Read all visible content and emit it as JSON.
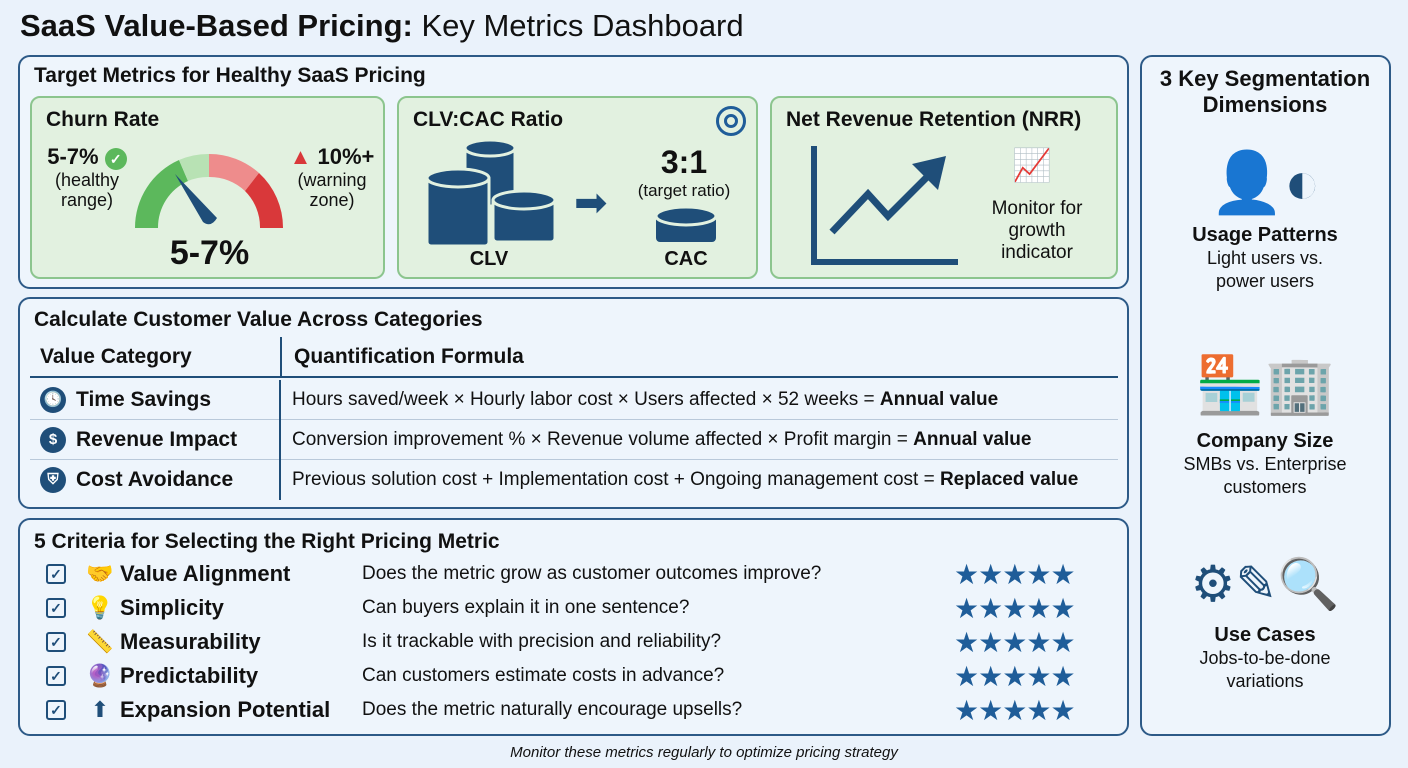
{
  "title": {
    "bold": "SaaS Value-Based Pricing:",
    "rest": " Key Metrics Dashboard"
  },
  "target": {
    "title": "Target Metrics for Healthy SaaS Pricing",
    "churn": {
      "title": "Churn Rate",
      "healthy_value": "5-7%",
      "healthy_label1": "(healthy",
      "healthy_label2": "range)",
      "warning_value": "10%+",
      "warning_label1": "(warning",
      "warning_label2": "zone)",
      "current": "5-7%",
      "colors": {
        "green": "#5cb85c",
        "light_green": "#b8e2b4",
        "light_red": "#ee8c8c",
        "red": "#d9383a",
        "needle": "#1f4e79"
      }
    },
    "clv": {
      "title": "CLV:CAC Ratio",
      "ratio": "3:1",
      "ratio_label": "(target ratio)",
      "clv_label": "CLV",
      "cac_label": "CAC",
      "icon": "target-icon"
    },
    "nrr": {
      "title": "Net Revenue Retention (NRR)",
      "desc1": "Monitor for",
      "desc2": "growth",
      "desc3": "indicator"
    }
  },
  "value": {
    "title": "Calculate Customer Value Across Categories",
    "headers": [
      "Value Category",
      "Quantification Formula"
    ],
    "rows": [
      {
        "icon": "clock-icon",
        "category": "Time Savings",
        "formula": "Hours saved/week × Hourly labor cost × Users affected × 52 weeks = ",
        "result": "Annual value"
      },
      {
        "icon": "dollar-growth-icon",
        "category": "Revenue Impact",
        "formula": "Conversion improvement % × Revenue volume affected × Profit margin = ",
        "result": "Annual value"
      },
      {
        "icon": "shield-x-icon",
        "category": "Cost Avoidance",
        "formula": "Previous solution cost + Implementation cost + Ongoing management cost = ",
        "result": "Replaced value"
      }
    ]
  },
  "criteria": {
    "title": "5 Criteria for Selecting the Right Pricing Metric",
    "items": [
      {
        "icon": "handshake-icon",
        "name": "Value Alignment",
        "question": "Does the metric grow as customer outcomes improve?",
        "rating": 5
      },
      {
        "icon": "lightbulb-icon",
        "name": "Simplicity",
        "question": "Can buyers explain it in one sentence?",
        "rating": 5
      },
      {
        "icon": "ruler-icon",
        "name": "Measurability",
        "question": "Is it trackable with precision and reliability?",
        "rating": 5
      },
      {
        "icon": "crystal-ball-icon",
        "name": "Predictability",
        "question": "Can customers estimate costs in advance?",
        "rating": 5
      },
      {
        "icon": "arrow-up-plus-icon",
        "name": "Expansion Potential",
        "question": "Does the metric naturally encourage upsells?",
        "rating": 5
      }
    ]
  },
  "segmentation": {
    "title1": "3 Key Segmentation",
    "title2": "Dimensions",
    "items": [
      {
        "icon": "users-icon",
        "title": "Usage Patterns",
        "d1": "Light users vs.",
        "d2": "power users"
      },
      {
        "icon": "buildings-icon",
        "title": "Company Size",
        "d1": "SMBs vs. Enterprise",
        "d2": "customers"
      },
      {
        "icon": "gear-pencil-search-icon",
        "title": "Use Cases",
        "d1": "Jobs-to-be-done",
        "d2": "variations"
      }
    ]
  },
  "footer": "Monitor these metrics regularly to optimize pricing strategy"
}
